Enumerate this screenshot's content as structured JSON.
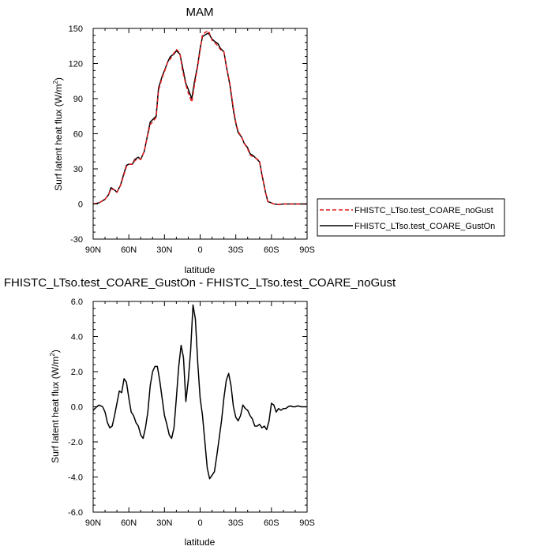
{
  "chart_data": [
    {
      "type": "line",
      "title": "MAM",
      "xlabel": "latitude",
      "ylabel": "Surf latent heat flux (W/m",
      "ylabel_sup": "2",
      "ylabel_close": ")",
      "xlim": [
        90,
        -90
      ],
      "ylim": [
        -30,
        150
      ],
      "xticks": [
        90,
        60,
        30,
        0,
        -30,
        -60,
        -90
      ],
      "xticklabels": [
        "90N",
        "60N",
        "30N",
        "0",
        "30S",
        "60S",
        "90S"
      ],
      "yticks": [
        -30,
        0,
        30,
        60,
        90,
        120,
        150
      ],
      "yticklabels": [
        "-30",
        "0",
        "30",
        "60",
        "90",
        "120",
        "150"
      ],
      "legend_position": "outside-right",
      "x": [
        90,
        85,
        80,
        77,
        75,
        72,
        70,
        67,
        65,
        62,
        60,
        57,
        55,
        52,
        50,
        47,
        45,
        42,
        40,
        37,
        35,
        32,
        30,
        27,
        25,
        22,
        20,
        17,
        15,
        12,
        10,
        7,
        5,
        2,
        0,
        -2,
        -5,
        -7,
        -10,
        -12,
        -15,
        -17,
        -20,
        -22,
        -25,
        -28,
        -30,
        -32,
        -35,
        -37,
        -40,
        -42,
        -45,
        -47,
        -50,
        -52,
        -55,
        -57,
        -60,
        -62,
        -65,
        -67,
        -70,
        -72,
        -75,
        -80,
        -85,
        -90
      ],
      "series": [
        {
          "name": "FHISTC_LTso.test_COARE_noGust",
          "color": "#e41a1c",
          "dash": true,
          "values": [
            0,
            1,
            4,
            8,
            13,
            12,
            10,
            16,
            22,
            32,
            34,
            34,
            37,
            39,
            38,
            45,
            55,
            68,
            70,
            74,
            97,
            108,
            113,
            122,
            124,
            129,
            132,
            129,
            115,
            102,
            95,
            87,
            100,
            118,
            131,
            145,
            147,
            148,
            140,
            138,
            135,
            132,
            130,
            118,
            103,
            82,
            70,
            62,
            57,
            52,
            47,
            42,
            40,
            39,
            37,
            25,
            10,
            2,
            1,
            0,
            -0.5,
            -0.5,
            0,
            0,
            0,
            0,
            0,
            0
          ]
        },
        {
          "name": "FHISTC_LTso.test_COARE_GustOn",
          "color": "#000000",
          "dash": false,
          "values": [
            0,
            1,
            4,
            8,
            14,
            12,
            10,
            16,
            23,
            33,
            34,
            34,
            38,
            40,
            38,
            45,
            55,
            70,
            72,
            75,
            99,
            109,
            114,
            122,
            126,
            128,
            131,
            128,
            118,
            103,
            98,
            90,
            103,
            119,
            133,
            143,
            145,
            146,
            141,
            139,
            137,
            133,
            130,
            118,
            102,
            80,
            69,
            61,
            57,
            52,
            48,
            43,
            41,
            39,
            36,
            25,
            10,
            2,
            1,
            0,
            -0.3,
            -0.3,
            0,
            0,
            0,
            0,
            0,
            0
          ]
        }
      ]
    },
    {
      "type": "line",
      "title": "FHISTC_LTso.test_COARE_GustOn - FHISTC_LTso.test_COARE_noGust",
      "xlabel": "latitude",
      "ylabel": "Surf latent heat flux (W/m",
      "ylabel_sup": "2",
      "ylabel_close": ")",
      "xlim": [
        90,
        -90
      ],
      "ylim": [
        -6,
        6
      ],
      "xticks": [
        90,
        60,
        30,
        0,
        -30,
        -60,
        -90
      ],
      "xticklabels": [
        "90N",
        "60N",
        "30N",
        "0",
        "30S",
        "60S",
        "90S"
      ],
      "yticks": [
        -6,
        -4,
        -2,
        0,
        2,
        4,
        6
      ],
      "yticklabels": [
        "-6.0",
        "-4.0",
        "-2.0",
        "0.0",
        "2.0",
        "4.0",
        "6.0"
      ],
      "x": [
        90,
        87,
        85,
        82,
        80,
        78,
        76,
        74,
        72,
        70,
        68,
        66,
        64,
        62,
        60,
        58,
        56,
        54,
        52,
        50,
        48,
        46,
        44,
        42,
        40,
        38,
        36,
        34,
        32,
        30,
        28,
        26,
        24,
        22,
        20,
        18,
        16,
        14,
        12,
        10,
        8,
        6,
        4,
        2,
        0,
        -2,
        -4,
        -6,
        -8,
        -10,
        -12,
        -14,
        -16,
        -18,
        -20,
        -22,
        -24,
        -26,
        -28,
        -30,
        -32,
        -34,
        -36,
        -38,
        -40,
        -42,
        -44,
        -46,
        -48,
        -50,
        -52,
        -54,
        -56,
        -58,
        -60,
        -62,
        -64,
        -66,
        -68,
        -70,
        -72,
        -74,
        -76,
        -78,
        -80,
        -82,
        -85,
        -88,
        -90
      ],
      "series": [
        {
          "name": "",
          "color": "#000000",
          "dash": false,
          "values": [
            -0.2,
            0,
            0.1,
            0,
            -0.3,
            -0.9,
            -1.2,
            -1.1,
            -0.5,
            0.2,
            0.9,
            0.8,
            1.6,
            1.4,
            0.5,
            -0.3,
            -0.5,
            -0.9,
            -1.1,
            -1.6,
            -1.8,
            -1.2,
            -0.3,
            1.2,
            2,
            2.3,
            2.3,
            1.5,
            0.5,
            -0.5,
            -1,
            -1.6,
            -1.8,
            -1.2,
            0.5,
            2.3,
            3.5,
            2.8,
            0.3,
            1.5,
            3.2,
            5.8,
            5,
            2.5,
            0.5,
            -0.5,
            -2,
            -3.5,
            -4.1,
            -3.9,
            -3.7,
            -2.8,
            -1.8,
            -0.8,
            0.5,
            1.5,
            1.9,
            1.2,
            0,
            -0.6,
            -0.8,
            -0.5,
            0.1,
            -0.1,
            -0.2,
            -0.5,
            -0.7,
            -1.1,
            -1.1,
            -1,
            -1.2,
            -1.1,
            -1.3,
            -0.8,
            0.2,
            0.1,
            -0.3,
            -0.1,
            -0.2,
            -0.1,
            -0.1,
            0,
            0.05,
            0,
            0,
            0.05,
            0,
            0,
            0
          ]
        }
      ]
    }
  ]
}
